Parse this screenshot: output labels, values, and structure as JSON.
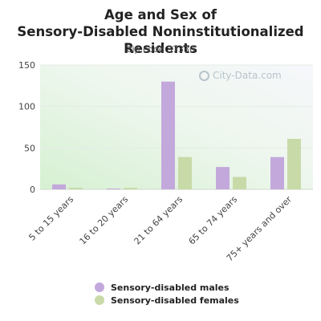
{
  "chart_data": {
    "type": "bar",
    "title": "Age and Sex of Sensory-Disabled Noninstitutionalized Residents",
    "subtitle": "Zip code 37330",
    "categories": [
      "5 to 15 years",
      "16 to 20 years",
      "21 to 64 years",
      "65 to 74 years",
      "75+ years and over"
    ],
    "series": [
      {
        "name": "Sensory-disabled males",
        "values": [
          6,
          1,
          130,
          27,
          39
        ],
        "color": "#c3a8dc"
      },
      {
        "name": "Sensory-disabled females",
        "values": [
          2,
          2,
          39,
          15,
          61
        ],
        "color": "#c8daa8"
      }
    ],
    "yticks": [
      "0",
      "50",
      "100",
      "150"
    ],
    "ylim": [
      0,
      150
    ],
    "grid": true,
    "legend_position": "bottom"
  },
  "watermark": "City-Data.com"
}
